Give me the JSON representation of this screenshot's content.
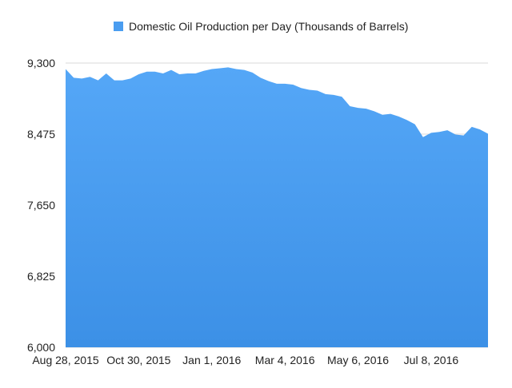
{
  "chart_data": {
    "type": "area",
    "legend": {
      "label": "Domestic Oil Production per Day (Thousands of Barrels)",
      "position": "top-center"
    },
    "ylim": [
      6000,
      9300
    ],
    "y_ticks": [
      6000,
      6825,
      7650,
      8475,
      9300
    ],
    "y_tick_labels": [
      "6,000",
      "6,825",
      "7,650",
      "8,475",
      "9,300"
    ],
    "x_tick_labels": [
      "Aug 28, 2015",
      "Oct 30, 2015",
      "Jan 1, 2016",
      "Mar 4, 2016",
      "May 6, 2016",
      "Jul 8, 2016"
    ],
    "x_tick_indices": [
      0,
      9,
      18,
      27,
      36,
      45
    ],
    "grid": true,
    "colors": {
      "fill_top": "#55a7f7",
      "fill_bottom": "#3c90e6",
      "grid": "#d9d9d9",
      "axis_text": "#222222"
    },
    "series": [
      {
        "values": [
          9230,
          9130,
          9120,
          9140,
          9100,
          9180,
          9100,
          9100,
          9120,
          9170,
          9200,
          9200,
          9180,
          9220,
          9170,
          9180,
          9180,
          9210,
          9230,
          9240,
          9250,
          9230,
          9220,
          9190,
          9130,
          9090,
          9060,
          9060,
          9050,
          9010,
          8990,
          8980,
          8940,
          8930,
          8910,
          8800,
          8780,
          8770,
          8740,
          8700,
          8710,
          8680,
          8640,
          8590,
          8440,
          8490,
          8500,
          8520,
          8470,
          8460,
          8560,
          8530,
          8480
        ]
      }
    ]
  }
}
